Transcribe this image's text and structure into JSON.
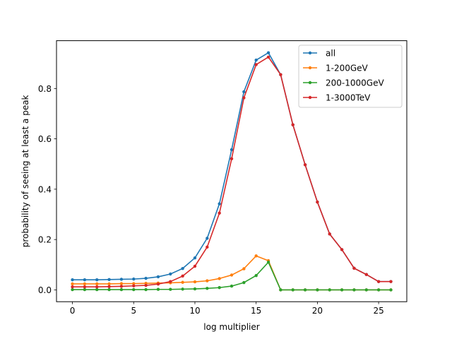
{
  "chart_data": {
    "type": "line",
    "xlabel": "log multiplier",
    "ylabel": "probability of seeing at least a peak",
    "xlim": [
      -1.3,
      27.3
    ],
    "ylim": [
      -0.047,
      0.99
    ],
    "xticks": [
      0,
      5,
      10,
      15,
      20,
      25
    ],
    "yticks": [
      0.0,
      0.2,
      0.4,
      0.6,
      0.8
    ],
    "grid": false,
    "legend_position": "top-right",
    "x": [
      0,
      1,
      2,
      3,
      4,
      5,
      6,
      7,
      8,
      9,
      10,
      11,
      12,
      13,
      14,
      15,
      16,
      17,
      18,
      19,
      20,
      21,
      22,
      23,
      24,
      25,
      26
    ],
    "series": [
      {
        "name": "all",
        "color": "#1f77b4",
        "values": [
          0.04,
          0.04,
          0.04,
          0.041,
          0.042,
          0.043,
          0.046,
          0.052,
          0.063,
          0.085,
          0.127,
          0.205,
          0.342,
          0.557,
          0.787,
          0.913,
          0.942,
          0.855,
          0.656,
          0.497,
          0.349,
          0.222,
          0.16,
          0.086,
          0.061,
          0.033,
          0.033
        ]
      },
      {
        "name": "1-200GeV",
        "color": "#ff7f0e",
        "values": [
          0.024,
          0.024,
          0.024,
          0.024,
          0.025,
          0.025,
          0.026,
          0.027,
          0.028,
          0.03,
          0.032,
          0.036,
          0.045,
          0.059,
          0.084,
          0.135,
          0.116,
          0.0,
          0.0,
          0.0,
          0.0,
          0.0,
          0.0,
          0.0,
          0.0,
          0.0,
          0.0
        ]
      },
      {
        "name": "200-1000GeV",
        "color": "#2ca02c",
        "values": [
          0.001,
          0.001,
          0.001,
          0.001,
          0.001,
          0.001,
          0.001,
          0.002,
          0.002,
          0.003,
          0.004,
          0.006,
          0.009,
          0.015,
          0.029,
          0.057,
          0.11,
          0.0,
          0.0,
          0.0,
          0.0,
          0.0,
          0.0,
          0.0,
          0.0,
          0.0,
          0.0
        ]
      },
      {
        "name": "1-3000TeV",
        "color": "#d62728",
        "values": [
          0.012,
          0.012,
          0.012,
          0.013,
          0.014,
          0.016,
          0.018,
          0.023,
          0.033,
          0.055,
          0.094,
          0.17,
          0.305,
          0.521,
          0.763,
          0.895,
          0.925,
          0.855,
          0.656,
          0.497,
          0.349,
          0.222,
          0.16,
          0.086,
          0.061,
          0.033,
          0.033
        ]
      }
    ]
  }
}
